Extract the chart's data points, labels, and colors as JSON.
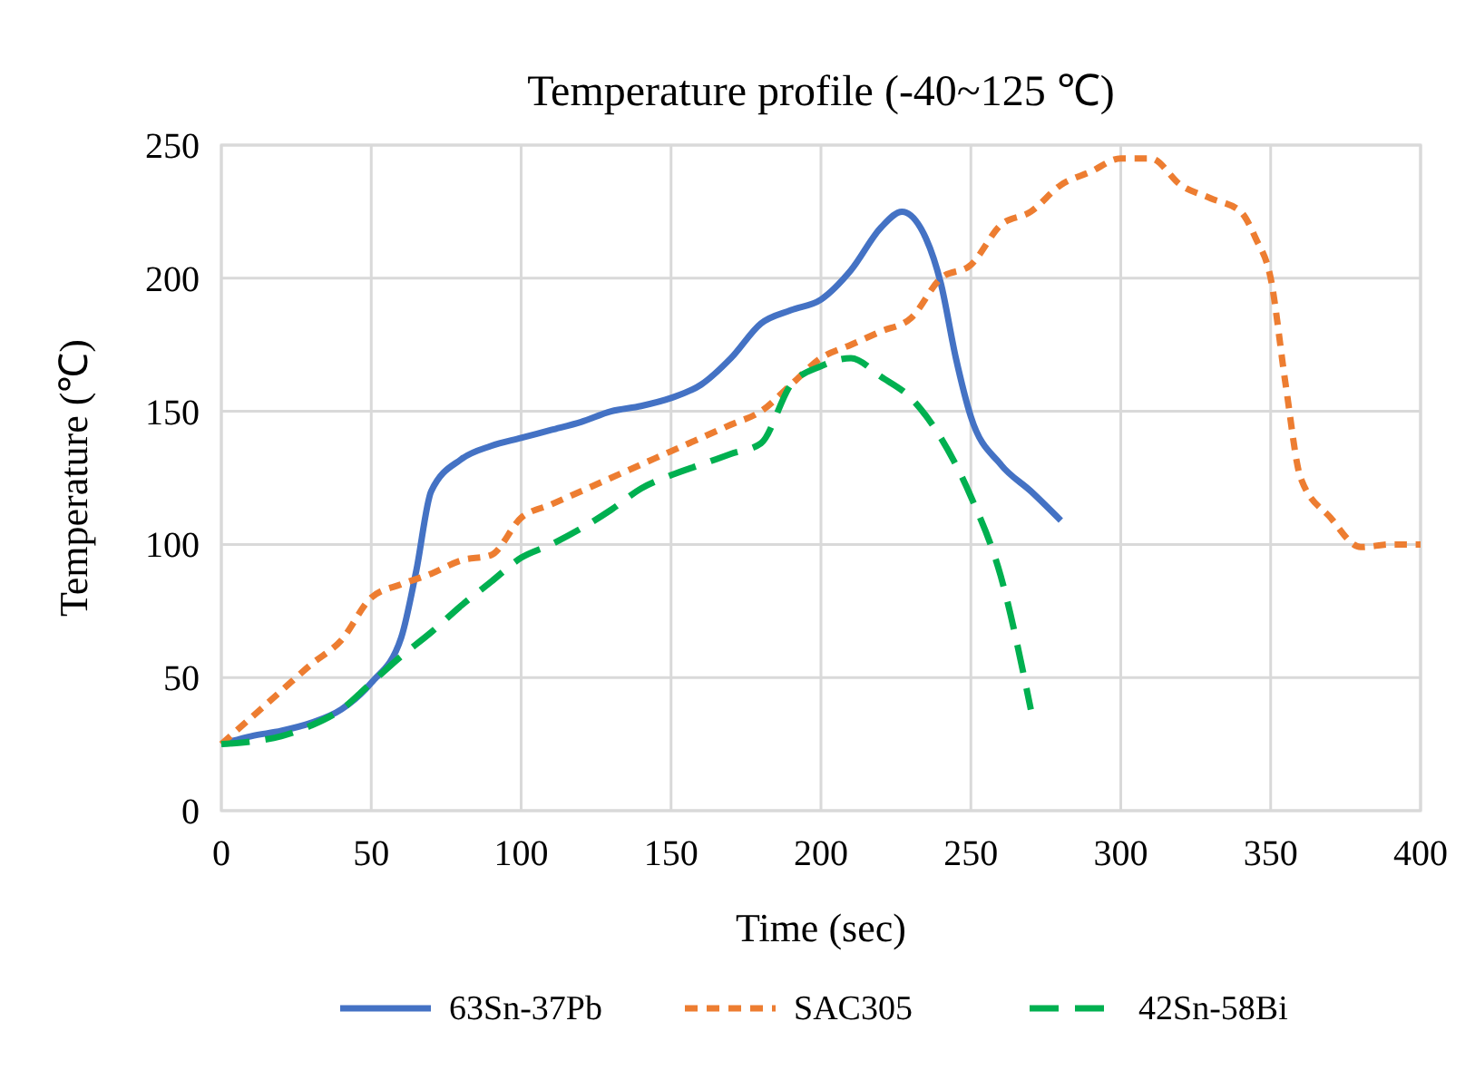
{
  "chart_data": {
    "type": "line",
    "title": "Temperature profile (-40~125 ℃)",
    "xlabel": "Time (sec)",
    "ylabel": "Temperature (℃)",
    "xlim": [
      0,
      400
    ],
    "xticks": [
      0,
      50,
      100,
      150,
      200,
      250,
      300,
      350,
      400
    ],
    "ylim": [
      0,
      250
    ],
    "yticks": [
      0,
      50,
      100,
      150,
      200,
      250
    ],
    "grid": true,
    "legend": "bottom",
    "series": [
      {
        "name": "63Sn-37Pb",
        "color": "#4472c4",
        "line_style": "solid",
        "x": [
          0,
          10,
          20,
          30,
          40,
          50,
          60,
          65,
          70,
          80,
          90,
          100,
          110,
          120,
          130,
          140,
          150,
          160,
          170,
          180,
          190,
          200,
          210,
          220,
          227,
          235,
          240,
          245,
          250,
          260,
          270,
          280
        ],
        "values": [
          25,
          28,
          30,
          33,
          38,
          48,
          65,
          90,
          120,
          132,
          137,
          140,
          143,
          146,
          150,
          152,
          155,
          160,
          170,
          183,
          188,
          192,
          203,
          219,
          225,
          215,
          198,
          170,
          148,
          130,
          120,
          109
        ]
      },
      {
        "name": "SAC305",
        "color": "#ed7d31",
        "line_style": "dotted",
        "x": [
          0,
          10,
          20,
          30,
          40,
          50,
          60,
          70,
          80,
          90,
          100,
          110,
          120,
          130,
          140,
          150,
          160,
          170,
          180,
          190,
          200,
          210,
          220,
          230,
          240,
          250,
          260,
          270,
          280,
          290,
          300,
          310,
          320,
          330,
          340,
          345,
          350,
          355,
          360,
          370,
          380,
          390,
          400
        ],
        "values": [
          25,
          35,
          45,
          55,
          64,
          80,
          85,
          89,
          94,
          96,
          110,
          115,
          120,
          125,
          130,
          135,
          140,
          145,
          150,
          160,
          170,
          175,
          180,
          185,
          200,
          205,
          220,
          225,
          235,
          240,
          245,
          245,
          235,
          230,
          225,
          215,
          200,
          160,
          125,
          110,
          99,
          100,
          100
        ]
      },
      {
        "name": "42Sn-58Bi",
        "color": "#00b050",
        "line_style": "dashed",
        "x": [
          0,
          10,
          20,
          30,
          40,
          50,
          60,
          70,
          80,
          90,
          100,
          110,
          120,
          130,
          140,
          150,
          160,
          170,
          180,
          190,
          200,
          210,
          220,
          230,
          240,
          250,
          260,
          270
        ],
        "values": [
          25,
          26,
          28,
          32,
          38,
          48,
          58,
          67,
          77,
          86,
          95,
          100,
          106,
          113,
          121,
          126,
          130,
          134,
          138,
          160,
          167,
          170,
          163,
          155,
          140,
          118,
          88,
          38
        ]
      }
    ]
  }
}
